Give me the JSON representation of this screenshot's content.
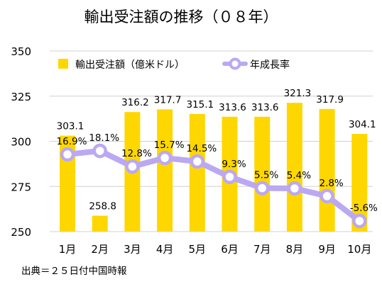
{
  "chart_data": {
    "type": "bar",
    "title": "輸出受注額の推移（０８年）",
    "categories": [
      "1月",
      "2月",
      "3月",
      "4月",
      "5月",
      "6月",
      "7月",
      "8月",
      "9月",
      "10月"
    ],
    "series": [
      {
        "name": "輸出受注額（億米ドル）",
        "type": "bar",
        "axis": "left",
        "color": "#FFD700",
        "values": [
          303.1,
          258.8,
          316.2,
          317.7,
          315.1,
          313.6,
          313.6,
          321.3,
          317.9,
          304.1
        ],
        "labels": [
          "303.1",
          "258.8",
          "316.2",
          "317.7",
          "315.1",
          "313.6",
          "313.6",
          "321.3",
          "317.9",
          "304.1"
        ]
      },
      {
        "name": "年成長率",
        "type": "line",
        "axis": "secondary",
        "color": "#BBA8F2",
        "marker_fill": "#FFFFFF",
        "values": [
          16.9,
          18.1,
          12.8,
          15.7,
          14.5,
          9.3,
          5.5,
          5.4,
          2.8,
          -5.6
        ],
        "labels": [
          "16.9%",
          "18.1%",
          "12.8%",
          "15.7%",
          "14.5%",
          "9.3%",
          "5.5%",
          "5.4%",
          "2.8%",
          "-5.6%"
        ]
      }
    ],
    "yticks": [
      "250",
      "275",
      "300",
      "325",
      "350"
    ],
    "ylim": [
      250,
      350
    ],
    "grid": true,
    "legend_position": "top"
  },
  "source_note": "出典＝２５日付中国時報"
}
